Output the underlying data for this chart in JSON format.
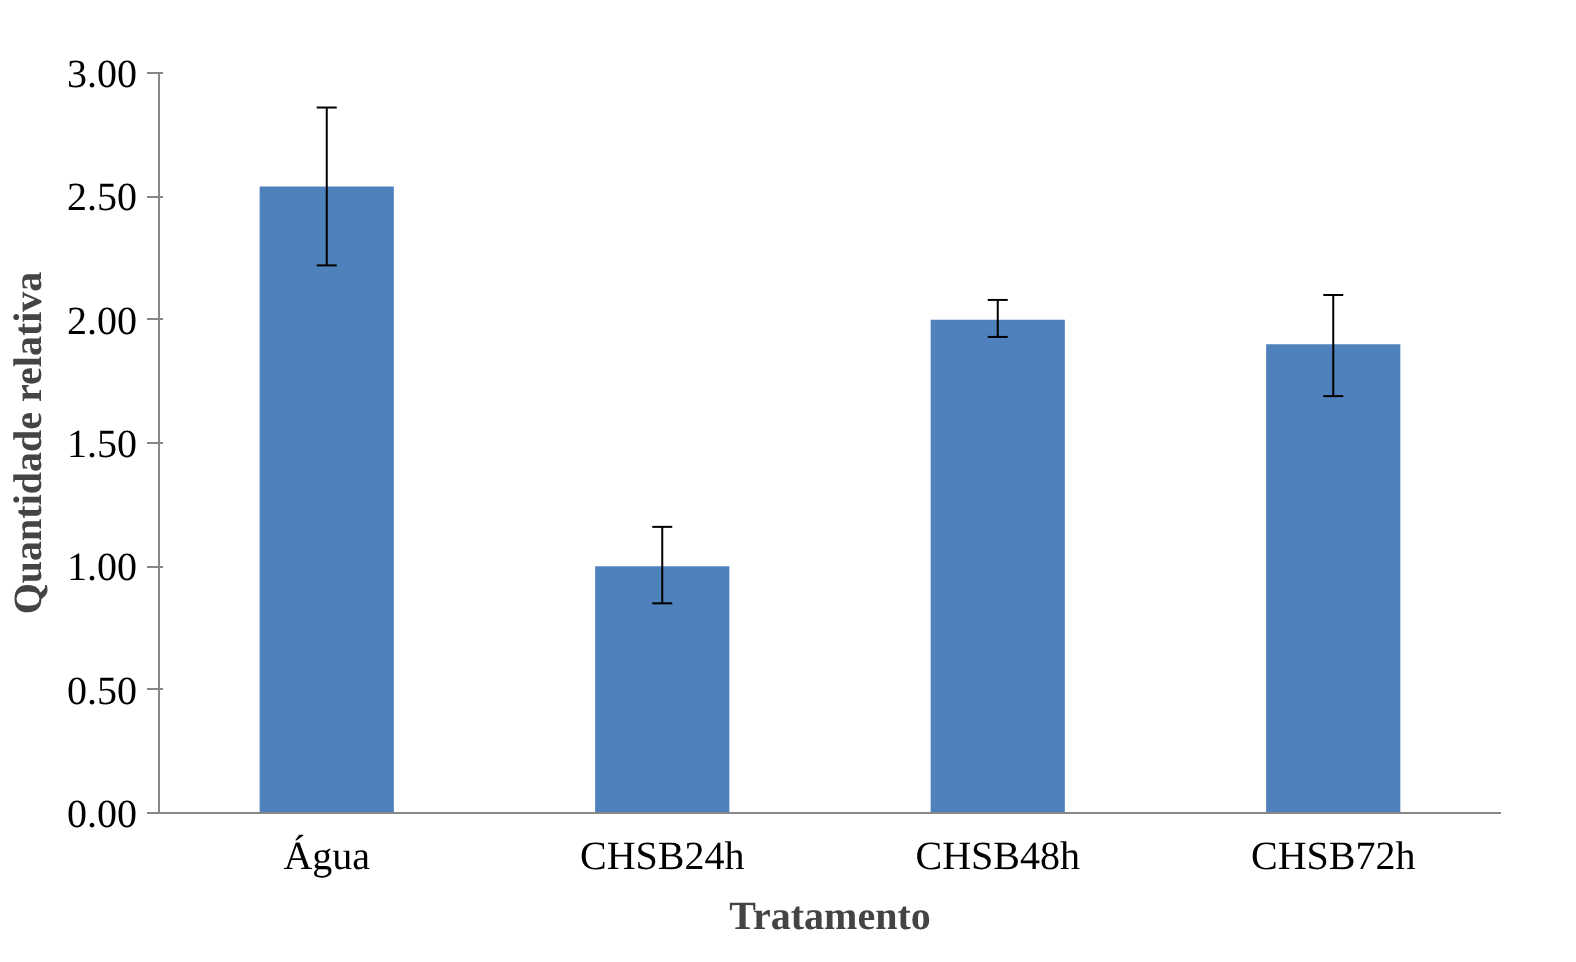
{
  "chart_data": {
    "type": "bar",
    "xlabel": "Tratamento",
    "ylabel": "Quantidade relativa",
    "categories": [
      "Água",
      "CHSB24h",
      "CHSB48h",
      "CHSB72h"
    ],
    "values": [
      2.54,
      1.0,
      2.0,
      1.9
    ],
    "errors": [
      [
        2.22,
        2.86
      ],
      [
        0.85,
        1.16
      ],
      [
        1.93,
        2.08
      ],
      [
        1.69,
        2.1
      ]
    ],
    "color": "#4f81bd",
    "ylim": [
      0,
      3
    ],
    "yticks": [
      {
        "value": 0,
        "label": "0.00"
      },
      {
        "value": 0.5,
        "label": "0.50"
      },
      {
        "value": 1,
        "label": "1.00"
      },
      {
        "value": 1.5,
        "label": "1.50"
      },
      {
        "value": 2,
        "label": "2.00"
      },
      {
        "value": 2.5,
        "label": "2.50"
      },
      {
        "value": 3,
        "label": "3.00"
      }
    ],
    "grid": false
  }
}
